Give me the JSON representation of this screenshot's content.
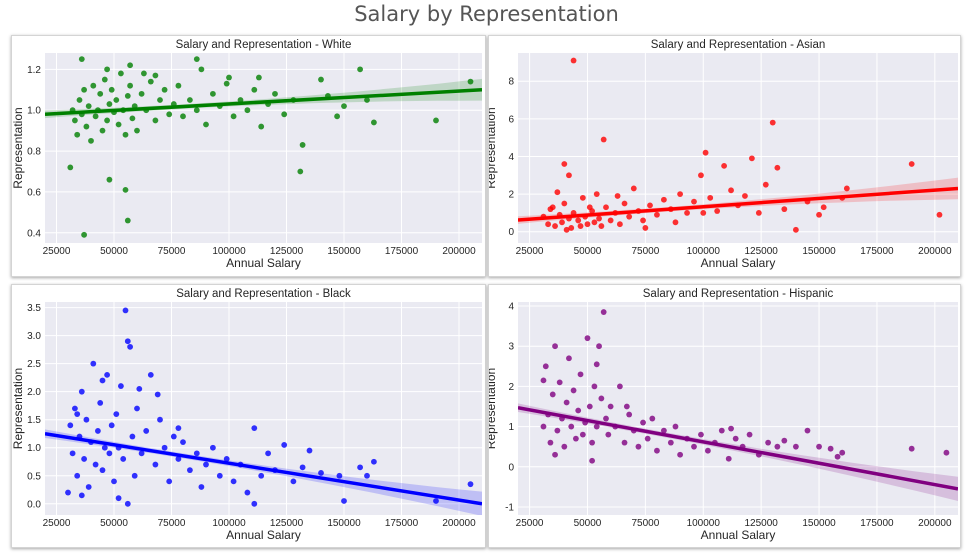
{
  "page": {
    "title": "Salary by Representation"
  },
  "chart_data": [
    {
      "type": "scatter",
      "title": "Salary and Representation - White",
      "xlabel": "Annual Salary",
      "ylabel": "Representation",
      "xlim": [
        20000,
        210000
      ],
      "ylim": [
        0.35,
        1.28
      ],
      "xticks": [
        25000,
        50000,
        75000,
        100000,
        125000,
        150000,
        175000,
        200000
      ],
      "yticks": [
        0.4,
        0.6,
        0.8,
        1.0,
        1.2
      ],
      "yformat": "1",
      "color": "#008000",
      "trend": {
        "x": [
          20000,
          210000
        ],
        "y": [
          0.98,
          1.1
        ]
      },
      "points": [
        [
          32000,
          1.0
        ],
        [
          33000,
          0.95
        ],
        [
          34000,
          0.88
        ],
        [
          35000,
          1.05
        ],
        [
          36000,
          0.98
        ],
        [
          37000,
          1.1
        ],
        [
          38000,
          0.92
        ],
        [
          39000,
          1.02
        ],
        [
          40000,
          0.85
        ],
        [
          41000,
          1.12
        ],
        [
          42000,
          0.97
        ],
        [
          43000,
          1.0
        ],
        [
          44000,
          1.08
        ],
        [
          45000,
          0.9
        ],
        [
          46000,
          1.15
        ],
        [
          47000,
          0.95
        ],
        [
          48000,
          1.03
        ],
        [
          49000,
          1.1
        ],
        [
          50000,
          0.99
        ],
        [
          51000,
          1.05
        ],
        [
          52000,
          0.93
        ],
        [
          53000,
          1.18
        ],
        [
          54000,
          1.0
        ],
        [
          55000,
          0.88
        ],
        [
          56000,
          1.07
        ],
        [
          57000,
          1.12
        ],
        [
          58000,
          0.96
        ],
        [
          59000,
          1.02
        ],
        [
          60000,
          0.9
        ],
        [
          62000,
          1.08
        ],
        [
          64000,
          1.0
        ],
        [
          66000,
          1.14
        ],
        [
          68000,
          0.95
        ],
        [
          70000,
          1.05
        ],
        [
          72000,
          1.1
        ],
        [
          74000,
          0.98
        ],
        [
          76000,
          1.03
        ],
        [
          78000,
          1.12
        ],
        [
          80000,
          0.97
        ],
        [
          83000,
          1.05
        ],
        [
          86000,
          1.0
        ],
        [
          88000,
          1.2
        ],
        [
          90000,
          0.93
        ],
        [
          93000,
          1.08
        ],
        [
          96000,
          1.02
        ],
        [
          99000,
          1.13
        ],
        [
          102000,
          0.97
        ],
        [
          105000,
          1.05
        ],
        [
          108000,
          1.0
        ],
        [
          111000,
          1.1
        ],
        [
          114000,
          0.92
        ],
        [
          117000,
          1.03
        ],
        [
          120000,
          1.08
        ],
        [
          124000,
          0.98
        ],
        [
          128000,
          1.05
        ],
        [
          132000,
          0.83
        ],
        [
          131000,
          0.7
        ],
        [
          140000,
          1.15
        ],
        [
          143000,
          1.07
        ],
        [
          147000,
          0.97
        ],
        [
          150000,
          1.02
        ],
        [
          157000,
          1.2
        ],
        [
          160000,
          1.05
        ],
        [
          163000,
          0.94
        ],
        [
          190000,
          0.95
        ],
        [
          205000,
          1.14
        ],
        [
          37000,
          0.39
        ],
        [
          56000,
          0.46
        ],
        [
          55000,
          0.61
        ],
        [
          48000,
          0.66
        ],
        [
          31000,
          0.72
        ],
        [
          36000,
          1.25
        ],
        [
          47000,
          1.2
        ],
        [
          57000,
          1.22
        ],
        [
          63000,
          1.18
        ],
        [
          68000,
          1.17
        ],
        [
          86000,
          1.25
        ],
        [
          100000,
          1.16
        ],
        [
          113000,
          1.16
        ]
      ]
    },
    {
      "type": "scatter",
      "title": "Salary and Representation - Asian",
      "xlabel": "Annual Salary",
      "ylabel": "Representation",
      "xlim": [
        20000,
        210000
      ],
      "ylim": [
        -0.6,
        9.5
      ],
      "xticks": [
        25000,
        50000,
        75000,
        100000,
        125000,
        150000,
        175000,
        200000
      ],
      "yticks": [
        0,
        2,
        4,
        6,
        8
      ],
      "yformat": "0",
      "color": "#ff0000",
      "trend": {
        "x": [
          20000,
          210000
        ],
        "y": [
          0.62,
          2.3
        ]
      },
      "points": [
        [
          31000,
          0.8
        ],
        [
          33000,
          0.4
        ],
        [
          34000,
          1.2
        ],
        [
          36000,
          0.3
        ],
        [
          38000,
          0.9
        ],
        [
          39000,
          0.5
        ],
        [
          40000,
          1.5
        ],
        [
          42000,
          0.7
        ],
        [
          43000,
          0.2
        ],
        [
          44000,
          1.0
        ],
        [
          46000,
          0.6
        ],
        [
          47000,
          0.3
        ],
        [
          48000,
          1.8
        ],
        [
          49000,
          0.8
        ],
        [
          50000,
          0.4
        ],
        [
          52000,
          1.1
        ],
        [
          53000,
          0.5
        ],
        [
          54000,
          2.0
        ],
        [
          55000,
          0.7
        ],
        [
          56000,
          0.3
        ],
        [
          57000,
          4.9
        ],
        [
          58000,
          1.3
        ],
        [
          60000,
          0.6
        ],
        [
          62000,
          1.0
        ],
        [
          64000,
          0.4
        ],
        [
          66000,
          1.5
        ],
        [
          68000,
          0.8
        ],
        [
          70000,
          2.3
        ],
        [
          72000,
          1.1
        ],
        [
          74000,
          0.6
        ],
        [
          77000,
          1.4
        ],
        [
          80000,
          0.9
        ],
        [
          83000,
          1.7
        ],
        [
          86000,
          1.2
        ],
        [
          88000,
          0.5
        ],
        [
          90000,
          2.0
        ],
        [
          93000,
          1.0
        ],
        [
          96000,
          1.6
        ],
        [
          99000,
          3.0
        ],
        [
          101000,
          4.2
        ],
        [
          103000,
          1.8
        ],
        [
          106000,
          1.1
        ],
        [
          109000,
          3.5
        ],
        [
          112000,
          2.2
        ],
        [
          115000,
          1.4
        ],
        [
          118000,
          1.9
        ],
        [
          121000,
          3.9
        ],
        [
          124000,
          1.0
        ],
        [
          127000,
          2.5
        ],
        [
          130000,
          5.8
        ],
        [
          132000,
          3.4
        ],
        [
          135000,
          1.2
        ],
        [
          140000,
          0.1
        ],
        [
          145000,
          1.6
        ],
        [
          150000,
          0.9
        ],
        [
          152000,
          1.3
        ],
        [
          160000,
          1.8
        ],
        [
          162000,
          2.3
        ],
        [
          190000,
          3.6
        ],
        [
          202000,
          0.9
        ],
        [
          44000,
          9.1
        ],
        [
          40000,
          3.6
        ],
        [
          42000,
          3.0
        ],
        [
          37000,
          2.1
        ],
        [
          35000,
          1.3
        ],
        [
          41000,
          0.1
        ],
        [
          51000,
          1.3
        ],
        [
          63000,
          1.9
        ],
        [
          75000,
          0.2
        ],
        [
          100000,
          1.0
        ]
      ]
    },
    {
      "type": "scatter",
      "title": "Salary and Representation - Black",
      "xlabel": "Annual Salary",
      "ylabel": "Representation",
      "xlim": [
        20000,
        210000
      ],
      "ylim": [
        -0.2,
        3.6
      ],
      "xticks": [
        25000,
        50000,
        75000,
        100000,
        125000,
        150000,
        175000,
        200000
      ],
      "yticks": [
        0.0,
        0.5,
        1.0,
        1.5,
        2.0,
        2.5,
        3.0,
        3.5
      ],
      "yformat": "1",
      "color": "#0000ff",
      "trend": {
        "x": [
          20000,
          210000
        ],
        "y": [
          1.25,
          0.0
        ]
      },
      "points": [
        [
          31000,
          1.4
        ],
        [
          32000,
          0.9
        ],
        [
          33000,
          1.7
        ],
        [
          34000,
          0.5
        ],
        [
          35000,
          1.2
        ],
        [
          36000,
          2.0
        ],
        [
          37000,
          0.8
        ],
        [
          38000,
          1.5
        ],
        [
          39000,
          0.3
        ],
        [
          40000,
          1.1
        ],
        [
          41000,
          2.5
        ],
        [
          42000,
          0.7
        ],
        [
          43000,
          1.3
        ],
        [
          44000,
          1.8
        ],
        [
          45000,
          0.6
        ],
        [
          46000,
          1.0
        ],
        [
          47000,
          2.3
        ],
        [
          48000,
          0.9
        ],
        [
          49000,
          1.4
        ],
        [
          50000,
          0.4
        ],
        [
          51000,
          1.6
        ],
        [
          52000,
          1.0
        ],
        [
          53000,
          2.1
        ],
        [
          54000,
          0.8
        ],
        [
          55000,
          3.45
        ],
        [
          56000,
          2.9
        ],
        [
          57000,
          2.8
        ],
        [
          58000,
          1.2
        ],
        [
          59000,
          0.5
        ],
        [
          60000,
          1.7
        ],
        [
          62000,
          0.9
        ],
        [
          64000,
          1.3
        ],
        [
          66000,
          2.3
        ],
        [
          68000,
          0.7
        ],
        [
          70000,
          1.5
        ],
        [
          72000,
          1.0
        ],
        [
          74000,
          0.4
        ],
        [
          76000,
          1.2
        ],
        [
          78000,
          0.8
        ],
        [
          80000,
          1.1
        ],
        [
          83000,
          0.6
        ],
        [
          86000,
          0.9
        ],
        [
          88000,
          0.3
        ],
        [
          90000,
          0.7
        ],
        [
          93000,
          1.0
        ],
        [
          96000,
          0.5
        ],
        [
          99000,
          0.8
        ],
        [
          102000,
          0.4
        ],
        [
          105000,
          0.7
        ],
        [
          108000,
          0.2
        ],
        [
          111000,
          1.35
        ],
        [
          114000,
          0.5
        ],
        [
          117000,
          0.9
        ],
        [
          120000,
          0.6
        ],
        [
          124000,
          1.05
        ],
        [
          128000,
          0.4
        ],
        [
          132000,
          0.65
        ],
        [
          135000,
          0.95
        ],
        [
          140000,
          0.55
        ],
        [
          148000,
          0.5
        ],
        [
          150000,
          0.05
        ],
        [
          157000,
          0.65
        ],
        [
          160000,
          0.5
        ],
        [
          163000,
          0.75
        ],
        [
          190000,
          0.05
        ],
        [
          205000,
          0.35
        ],
        [
          36000,
          0.15
        ],
        [
          45000,
          2.2
        ],
        [
          61000,
          2.05
        ],
        [
          69000,
          1.95
        ],
        [
          78000,
          1.35
        ],
        [
          111000,
          0.0
        ],
        [
          30000,
          0.2
        ],
        [
          34000,
          1.6
        ],
        [
          52000,
          0.1
        ],
        [
          56000,
          0.0
        ]
      ]
    },
    {
      "type": "scatter",
      "title": "Salary and Representation - Hispanic",
      "xlabel": "Annual Salary",
      "ylabel": "Representation",
      "xlim": [
        20000,
        210000
      ],
      "ylim": [
        -1.2,
        4.1
      ],
      "xticks": [
        25000,
        50000,
        75000,
        100000,
        125000,
        150000,
        175000,
        200000
      ],
      "yticks": [
        -1,
        0,
        1,
        2,
        3,
        4
      ],
      "yformat": "0",
      "color": "#800080",
      "trend": {
        "x": [
          20000,
          210000
        ],
        "y": [
          1.47,
          -0.55
        ]
      },
      "points": [
        [
          31000,
          1.0
        ],
        [
          32000,
          2.5
        ],
        [
          33000,
          1.3
        ],
        [
          34000,
          0.6
        ],
        [
          35000,
          1.8
        ],
        [
          36000,
          3.0
        ],
        [
          37000,
          0.9
        ],
        [
          38000,
          2.1
        ],
        [
          39000,
          1.2
        ],
        [
          40000,
          0.5
        ],
        [
          41000,
          1.6
        ],
        [
          42000,
          2.7
        ],
        [
          43000,
          1.0
        ],
        [
          44000,
          1.9
        ],
        [
          45000,
          0.7
        ],
        [
          46000,
          1.4
        ],
        [
          47000,
          2.3
        ],
        [
          48000,
          0.8
        ],
        [
          49000,
          1.1
        ],
        [
          50000,
          3.2
        ],
        [
          51000,
          1.5
        ],
        [
          52000,
          0.6
        ],
        [
          53000,
          2.0
        ],
        [
          54000,
          1.0
        ],
        [
          55000,
          3.0
        ],
        [
          56000,
          1.7
        ],
        [
          57000,
          3.85
        ],
        [
          58000,
          1.2
        ],
        [
          59000,
          0.8
        ],
        [
          60000,
          1.5
        ],
        [
          62000,
          1.0
        ],
        [
          64000,
          2.0
        ],
        [
          66000,
          0.6
        ],
        [
          68000,
          1.3
        ],
        [
          70000,
          0.9
        ],
        [
          72000,
          0.5
        ],
        [
          74000,
          1.1
        ],
        [
          76000,
          0.7
        ],
        [
          78000,
          1.2
        ],
        [
          80000,
          0.4
        ],
        [
          83000,
          0.9
        ],
        [
          86000,
          0.6
        ],
        [
          88000,
          1.0
        ],
        [
          90000,
          0.3
        ],
        [
          93000,
          0.7
        ],
        [
          96000,
          0.5
        ],
        [
          99000,
          0.8
        ],
        [
          102000,
          0.4
        ],
        [
          105000,
          0.6
        ],
        [
          108000,
          0.9
        ],
        [
          111000,
          0.2
        ],
        [
          114000,
          0.7
        ],
        [
          117000,
          0.5
        ],
        [
          120000,
          0.8
        ],
        [
          124000,
          0.3
        ],
        [
          128000,
          0.6
        ],
        [
          132000,
          0.5
        ],
        [
          135000,
          0.65
        ],
        [
          140000,
          0.5
        ],
        [
          145000,
          0.9
        ],
        [
          150000,
          0.5
        ],
        [
          155000,
          0.45
        ],
        [
          158000,
          0.25
        ],
        [
          160000,
          0.35
        ],
        [
          190000,
          0.45
        ],
        [
          205000,
          0.35
        ],
        [
          31000,
          2.15
        ],
        [
          36000,
          0.3
        ],
        [
          52000,
          0.15
        ],
        [
          54000,
          2.55
        ],
        [
          67000,
          1.5
        ],
        [
          112000,
          0.95
        ]
      ]
    }
  ]
}
